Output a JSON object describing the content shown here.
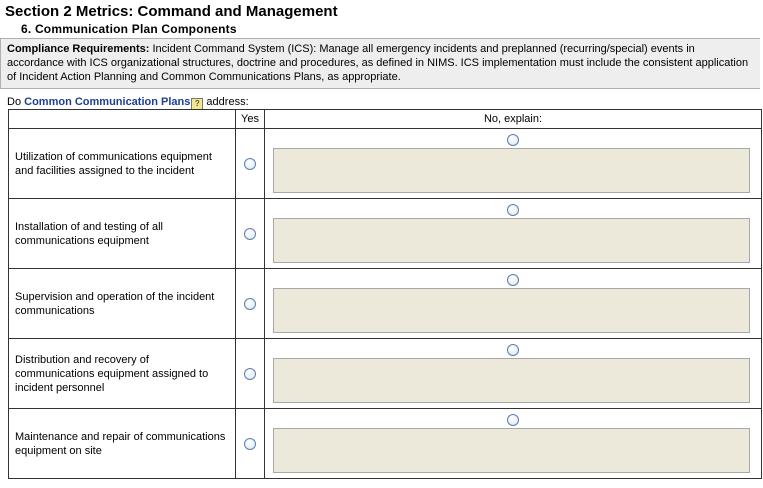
{
  "header": {
    "title": "Section 2 Metrics:  Command and Management",
    "subtitle": "6. Communication Plan Components"
  },
  "compliance": {
    "label": "Compliance Requirements:",
    "text": " Incident Command System (ICS): Manage all emergency incidents and preplanned (recurring/special) events in accordance with ICS organizational structures, doctrine and procedures, as defined in NIMS. ICS implementation must include the consistent application of Incident Action Planning and Common Communications Plans, as appropriate."
  },
  "intro": {
    "prefix": "Do ",
    "link": "Common Communication Plans",
    "help": "?",
    "suffix": " address:"
  },
  "table": {
    "headers": [
      "",
      "Yes",
      "No, explain:"
    ],
    "rows": [
      {
        "label": "Utilization of communications equipment and facilities assigned to the incident"
      },
      {
        "label": "Installation of and testing of all communications equipment"
      },
      {
        "label": "Supervision and operation of the incident communications"
      },
      {
        "label": "Distribution and recovery of communications equipment assigned to incident personnel"
      },
      {
        "label": "Maintenance and repair of communications equipment on site"
      }
    ]
  }
}
